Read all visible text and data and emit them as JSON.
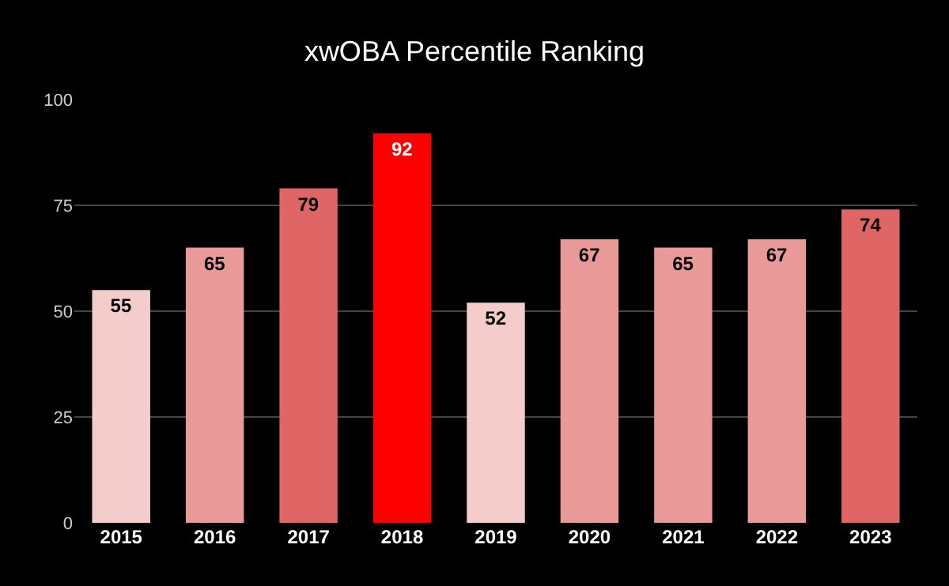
{
  "chart_data": {
    "type": "bar",
    "title": "xwOBA Percentile Ranking",
    "categories": [
      "2015",
      "2016",
      "2017",
      "2018",
      "2019",
      "2020",
      "2021",
      "2022",
      "2023"
    ],
    "values": [
      55,
      65,
      79,
      92,
      52,
      67,
      65,
      67,
      74
    ],
    "colors": [
      "#f4cccc",
      "#ea9999",
      "#e06666",
      "#ff0000",
      "#f4cccc",
      "#ea9999",
      "#ea9999",
      "#ea9999",
      "#e06666"
    ],
    "ylim": [
      0,
      100
    ],
    "yticks": [
      0,
      25,
      50,
      75,
      100
    ],
    "grid": "y",
    "data_labels": true
  }
}
